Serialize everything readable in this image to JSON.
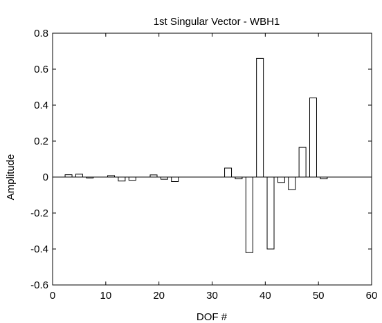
{
  "chart_data": {
    "type": "bar",
    "title": "1st Singular Vector - WBH1",
    "xlabel": "DOF #",
    "ylabel": "Amplitude",
    "xlim": [
      0,
      60
    ],
    "ylim": [
      -0.6,
      0.8
    ],
    "xticks": [
      0,
      10,
      20,
      30,
      40,
      50,
      60
    ],
    "yticks": [
      -0.6,
      -0.4,
      -0.2,
      0,
      0.2,
      0.4,
      0.6,
      0.8
    ],
    "xtick_labels": [
      "0",
      "10",
      "20",
      "30",
      "40",
      "50",
      "60"
    ],
    "ytick_labels": [
      "-0.6",
      "-0.4",
      "-0.2",
      "0",
      "0.2",
      "0.4",
      "0.6",
      "0.8"
    ],
    "grid": false,
    "x": [
      1,
      3,
      5,
      7,
      9,
      11,
      13,
      15,
      17,
      19,
      21,
      23,
      25,
      27,
      29,
      31,
      33,
      35,
      37,
      39,
      41,
      43,
      45,
      47,
      49,
      51
    ],
    "values": [
      0.0,
      0.013,
      0.016,
      -0.005,
      0.0,
      0.008,
      -0.022,
      -0.018,
      0.0,
      0.012,
      -0.012,
      -0.025,
      0.0,
      0.0,
      0.0,
      0.0,
      0.05,
      -0.01,
      -0.42,
      0.66,
      -0.4,
      -0.03,
      -0.07,
      0.165,
      0.44,
      -0.01
    ]
  }
}
